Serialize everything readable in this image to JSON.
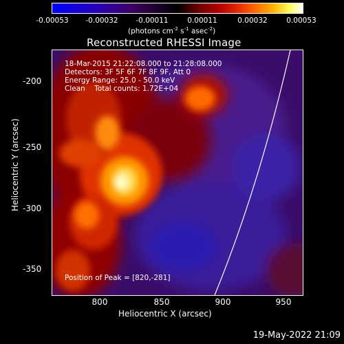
{
  "colorbar": {
    "ticks": [
      "-0.00053",
      "-0.00032",
      "-0.00011",
      "0.00011",
      "0.00032",
      "0.00053"
    ],
    "units_label": "(photons cm",
    "units_exp1": "-2",
    "units_mid": " s",
    "units_exp2": "-1",
    "units_mid2": " asec",
    "units_exp3": "-2",
    "units_end": ")"
  },
  "title": "Reconstructed RHESSI Image",
  "info": {
    "time_range": "18-Mar-2015 21:22:08.000 to 21:28:08.000",
    "detectors": "Detectors: 3F 5F 6F 7F 8F 9F, Att 0",
    "energy": "Energy Range: 25.0 - 50.0 keV",
    "clean": "Clean    Total counts: 1.72E+04",
    "peak": "Position of Peak = [820,-281]"
  },
  "axes": {
    "xlabel": "Heliocentric X (arcsec)",
    "ylabel": "Heliocentric Y (arcsec)",
    "xticks": [
      "800",
      "850",
      "900",
      "950"
    ],
    "yticks": [
      "-200",
      "-250",
      "-300",
      "-350"
    ]
  },
  "timestamp": "19-May-2022 21:09"
}
